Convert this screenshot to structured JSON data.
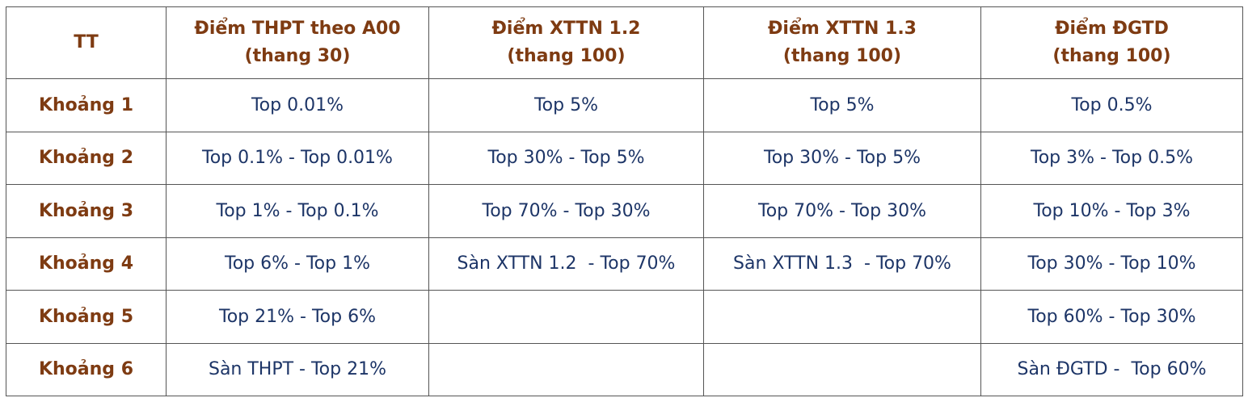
{
  "table": {
    "header": [
      [
        "TT"
      ],
      [
        "Điểm THPT theo A00",
        "(thang 30)"
      ],
      [
        "Điểm XTTN 1.2",
        "(thang 100)"
      ],
      [
        "Điểm XTTN 1.3",
        "(thang 100)"
      ],
      [
        "Điểm ĐGTD",
        "(thang 100)"
      ]
    ],
    "rows": [
      [
        "Khoảng 1",
        "Top 0.01%",
        "Top 5%",
        "Top 5%",
        "Top 0.5%"
      ],
      [
        "Khoảng 2",
        "Top 0.1% - Top 0.01%",
        "Top 30% - Top 5%",
        "Top 30% - Top 5%",
        "Top 3% - Top 0.5%"
      ],
      [
        "Khoảng 3",
        "Top 1% - Top 0.1%",
        "Top 70% - Top 30%",
        "Top 70% - Top 30%",
        "Top 10% - Top 3%"
      ],
      [
        "Khoảng 4",
        "Top 6% - Top 1%",
        "Sàn XTTN 1.2  - Top 70%",
        "Sàn XTTN 1.3  - Top 70%",
        "Top 30% - Top 10%"
      ],
      [
        "Khoảng 5",
        "Top 21% - Top 6%",
        null,
        null,
        "Top 60% - Top 30%"
      ],
      [
        "Khoảng 6",
        "Sàn THPT - Top 21%",
        null,
        null,
        "Sàn ĐGTD -  Top 60%"
      ]
    ]
  }
}
